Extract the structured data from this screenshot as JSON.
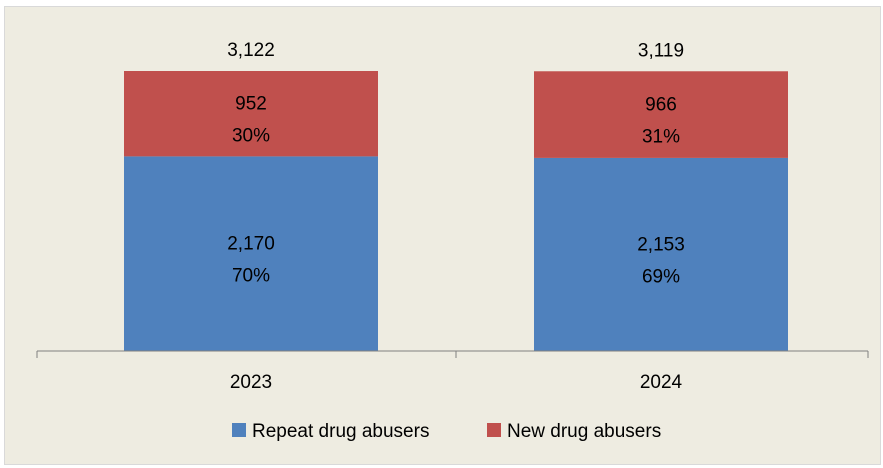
{
  "chart_data": {
    "type": "bar",
    "stacked": true,
    "categories": [
      "2023",
      "2024"
    ],
    "series": [
      {
        "name": "Repeat drug abusers",
        "color": "#4f81bd",
        "values": [
          2170,
          2153
        ],
        "value_labels": [
          "2,170",
          "2,153"
        ],
        "percent_labels": [
          "70%",
          "69%"
        ]
      },
      {
        "name": "New drug abusers",
        "color": "#c0504d",
        "values": [
          952,
          966
        ],
        "value_labels": [
          "952",
          "966"
        ],
        "percent_labels": [
          "30%",
          "31%"
        ]
      }
    ],
    "totals": [
      3122,
      3119
    ],
    "total_labels": [
      "3,122",
      "3,119"
    ],
    "ylim": [
      0,
      3122
    ],
    "title": "",
    "xlabel": "",
    "ylabel": "",
    "grid": false,
    "legend_position": "bottom"
  }
}
